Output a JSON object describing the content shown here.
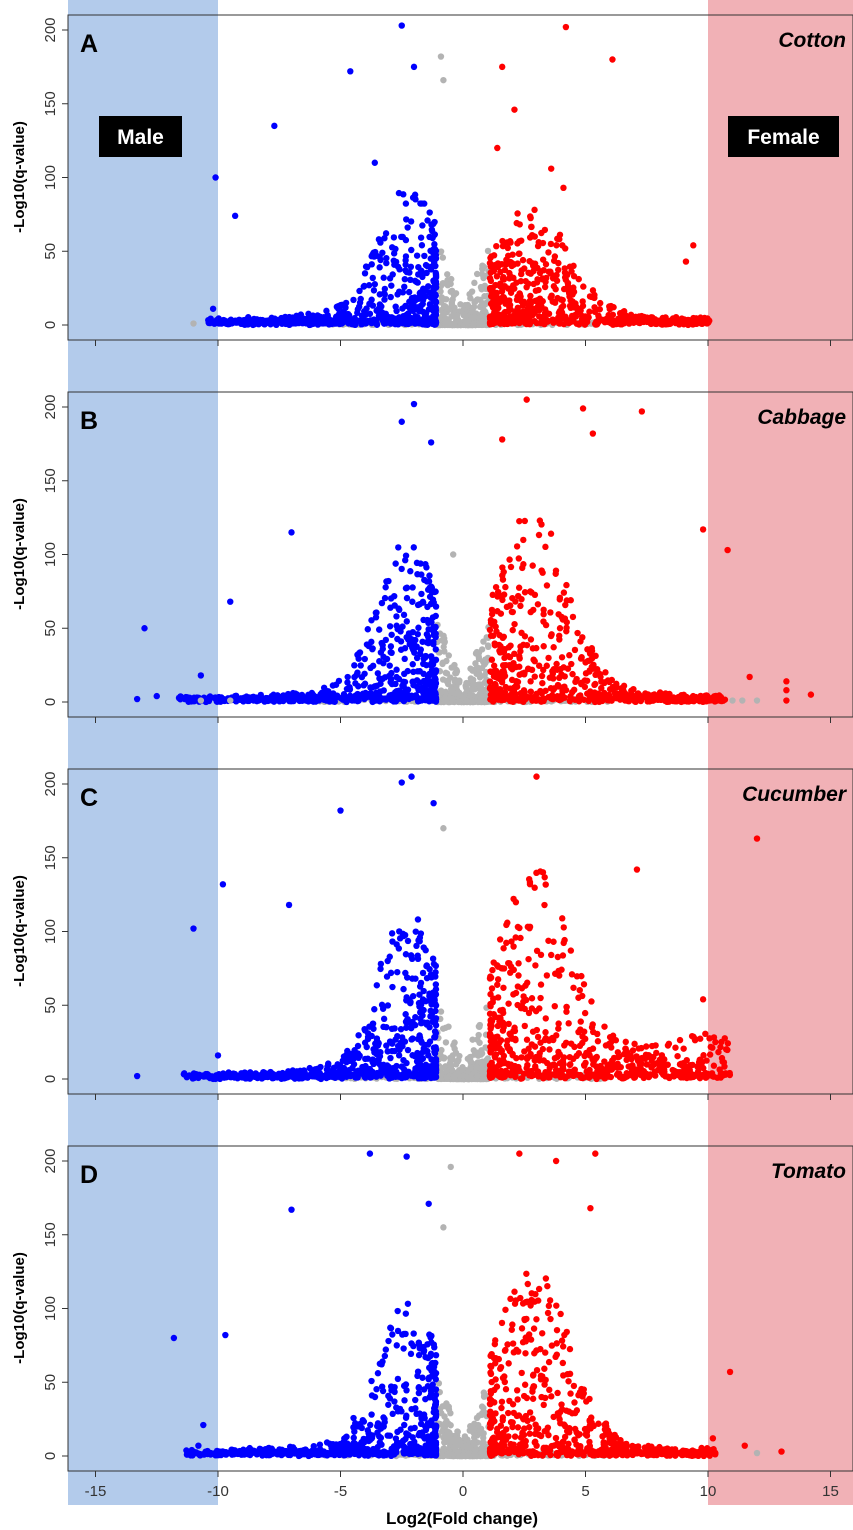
{
  "colors": {
    "male_band": "#b3cbeb",
    "female_band": "#f1b1b6",
    "down": "#0000ff",
    "up": "#ff0000",
    "ns": "#b3b3b3",
    "label_box": "#000000",
    "label_text": "#ffffff"
  },
  "region_labels": {
    "male": "Male",
    "female": "Female"
  },
  "chart_data": {
    "type": "scatter",
    "xlabel": "Log2(Fold change)",
    "ylabel": "-Log10(q-value)",
    "xlim": [
      -16,
      16
    ],
    "ylim": [
      -8,
      205
    ],
    "x_ticks": [
      -15,
      -10,
      -5,
      0,
      5,
      10,
      15
    ],
    "y_ticks": [
      0,
      50,
      100,
      150,
      200
    ],
    "shaded_regions": [
      {
        "label": "Male",
        "x_range": [
          -16,
          -10
        ]
      },
      {
        "label": "Female",
        "x_range": [
          10,
          16
        ]
      }
    ],
    "fold_change_threshold": 1,
    "panels": [
      {
        "letter": "A",
        "species": "Cotton",
        "legend": "Male / Female",
        "outlier_points": [
          {
            "x": -2.5,
            "y": 203,
            "group": "down"
          },
          {
            "x": -4.6,
            "y": 172,
            "group": "down"
          },
          {
            "x": -2.0,
            "y": 175,
            "group": "down"
          },
          {
            "x": -7.7,
            "y": 135,
            "group": "down"
          },
          {
            "x": -3.6,
            "y": 110,
            "group": "down"
          },
          {
            "x": -10.1,
            "y": 100,
            "group": "down"
          },
          {
            "x": -9.3,
            "y": 74,
            "group": "down"
          },
          {
            "x": -10.2,
            "y": 11,
            "group": "down"
          },
          {
            "x": -11.0,
            "y": 1,
            "group": "ns"
          },
          {
            "x": -0.9,
            "y": 182,
            "group": "ns"
          },
          {
            "x": -0.8,
            "y": 166,
            "group": "ns"
          },
          {
            "x": 4.2,
            "y": 202,
            "group": "up"
          },
          {
            "x": 6.1,
            "y": 180,
            "group": "up"
          },
          {
            "x": 1.6,
            "y": 175,
            "group": "up"
          },
          {
            "x": 2.1,
            "y": 146,
            "group": "up"
          },
          {
            "x": 1.4,
            "y": 120,
            "group": "up"
          },
          {
            "x": 3.6,
            "y": 106,
            "group": "up"
          },
          {
            "x": 4.1,
            "y": 93,
            "group": "up"
          },
          {
            "x": 9.4,
            "y": 54,
            "group": "up"
          },
          {
            "x": 9.1,
            "y": 43,
            "group": "up"
          }
        ]
      },
      {
        "letter": "B",
        "species": "Cabbage",
        "outlier_points": [
          {
            "x": -2.0,
            "y": 202,
            "group": "down"
          },
          {
            "x": -2.5,
            "y": 190,
            "group": "down"
          },
          {
            "x": -1.3,
            "y": 176,
            "group": "down"
          },
          {
            "x": -7.0,
            "y": 115,
            "group": "down"
          },
          {
            "x": -13.0,
            "y": 50,
            "group": "down"
          },
          {
            "x": -12.5,
            "y": 4,
            "group": "down"
          },
          {
            "x": -13.3,
            "y": 2,
            "group": "down"
          },
          {
            "x": -10.7,
            "y": 18,
            "group": "down"
          },
          {
            "x": -9.5,
            "y": 68,
            "group": "down"
          },
          {
            "x": -10.7,
            "y": 1,
            "group": "ns"
          },
          {
            "x": -9.5,
            "y": 1,
            "group": "ns"
          },
          {
            "x": -0.4,
            "y": 100,
            "group": "ns"
          },
          {
            "x": 2.6,
            "y": 205,
            "group": "up"
          },
          {
            "x": 4.9,
            "y": 199,
            "group": "up"
          },
          {
            "x": 7.3,
            "y": 197,
            "group": "up"
          },
          {
            "x": 5.3,
            "y": 182,
            "group": "up"
          },
          {
            "x": 1.6,
            "y": 178,
            "group": "up"
          },
          {
            "x": 9.8,
            "y": 117,
            "group": "up"
          },
          {
            "x": 10.8,
            "y": 103,
            "group": "up"
          },
          {
            "x": 11.7,
            "y": 17,
            "group": "up"
          },
          {
            "x": 13.2,
            "y": 14,
            "group": "up"
          },
          {
            "x": 13.2,
            "y": 8,
            "group": "up"
          },
          {
            "x": 14.2,
            "y": 5,
            "group": "up"
          },
          {
            "x": 13.2,
            "y": 1,
            "group": "up"
          },
          {
            "x": 11.0,
            "y": 1,
            "group": "ns"
          },
          {
            "x": 11.4,
            "y": 1,
            "group": "ns"
          },
          {
            "x": 12.0,
            "y": 1,
            "group": "ns"
          }
        ]
      },
      {
        "letter": "C",
        "species": "Cucumber",
        "outlier_points": [
          {
            "x": -2.5,
            "y": 201,
            "group": "down"
          },
          {
            "x": -2.1,
            "y": 205,
            "group": "down"
          },
          {
            "x": -1.2,
            "y": 187,
            "group": "down"
          },
          {
            "x": -5.0,
            "y": 182,
            "group": "down"
          },
          {
            "x": -9.8,
            "y": 132,
            "group": "down"
          },
          {
            "x": -11.0,
            "y": 102,
            "group": "down"
          },
          {
            "x": -10.0,
            "y": 16,
            "group": "down"
          },
          {
            "x": -13.3,
            "y": 2,
            "group": "down"
          },
          {
            "x": -7.1,
            "y": 118,
            "group": "down"
          },
          {
            "x": -0.8,
            "y": 170,
            "group": "ns"
          },
          {
            "x": 3.0,
            "y": 205,
            "group": "up"
          },
          {
            "x": 12.0,
            "y": 163,
            "group": "up"
          },
          {
            "x": 9.8,
            "y": 54,
            "group": "up"
          },
          {
            "x": 7.1,
            "y": 142,
            "group": "up"
          }
        ]
      },
      {
        "letter": "D",
        "species": "Tomato",
        "outlier_points": [
          {
            "x": -2.3,
            "y": 203,
            "group": "down"
          },
          {
            "x": -3.8,
            "y": 205,
            "group": "down"
          },
          {
            "x": -1.4,
            "y": 171,
            "group": "down"
          },
          {
            "x": -7.0,
            "y": 167,
            "group": "down"
          },
          {
            "x": -11.8,
            "y": 80,
            "group": "down"
          },
          {
            "x": -9.7,
            "y": 82,
            "group": "down"
          },
          {
            "x": -10.6,
            "y": 21,
            "group": "down"
          },
          {
            "x": -10.8,
            "y": 7,
            "group": "down"
          },
          {
            "x": -0.5,
            "y": 196,
            "group": "ns"
          },
          {
            "x": -0.8,
            "y": 155,
            "group": "ns"
          },
          {
            "x": 2.3,
            "y": 205,
            "group": "up"
          },
          {
            "x": 5.4,
            "y": 205,
            "group": "up"
          },
          {
            "x": 3.8,
            "y": 200,
            "group": "up"
          },
          {
            "x": 5.2,
            "y": 168,
            "group": "up"
          },
          {
            "x": 10.9,
            "y": 57,
            "group": "up"
          },
          {
            "x": 11.5,
            "y": 7,
            "group": "up"
          },
          {
            "x": 13.0,
            "y": 3,
            "group": "up"
          },
          {
            "x": 12.0,
            "y": 2,
            "group": "ns"
          },
          {
            "x": 10.2,
            "y": 12,
            "group": "up"
          }
        ]
      }
    ]
  }
}
